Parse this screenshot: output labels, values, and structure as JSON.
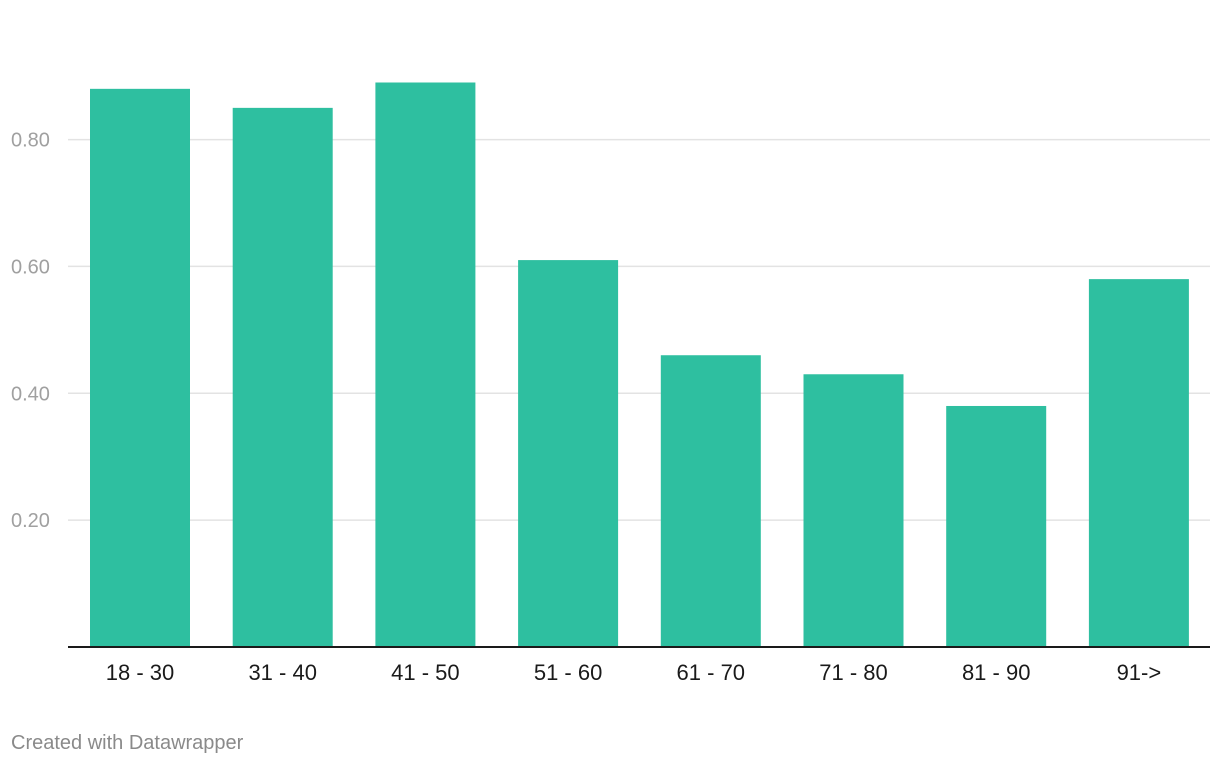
{
  "chart_data": {
    "type": "bar",
    "title": "",
    "xlabel": "",
    "ylabel": "",
    "categories": [
      "18 - 30",
      "31 - 40",
      "41 - 50",
      "51 - 60",
      "61 - 70",
      "71 - 80",
      "81 - 90",
      "91->"
    ],
    "values": [
      0.88,
      0.85,
      0.89,
      0.61,
      0.46,
      0.43,
      0.38,
      0.58
    ],
    "ylim": [
      0,
      0.957
    ],
    "yticks": [
      0.2,
      0.4,
      0.6,
      0.8
    ],
    "ytick_labels": [
      "0.20",
      "0.40",
      "0.60",
      "0.80"
    ],
    "grid": true,
    "legend": "none",
    "bar_color": "#2ebfa0",
    "grid_color": "#e3e3e3",
    "axis_color": "#1a1a1a",
    "tick_label_color": "#a0a0a0",
    "category_label_color": "#1a1a1a"
  },
  "footer": {
    "credit": "Created with Datawrapper",
    "credit_color": "#8a8a8a"
  }
}
